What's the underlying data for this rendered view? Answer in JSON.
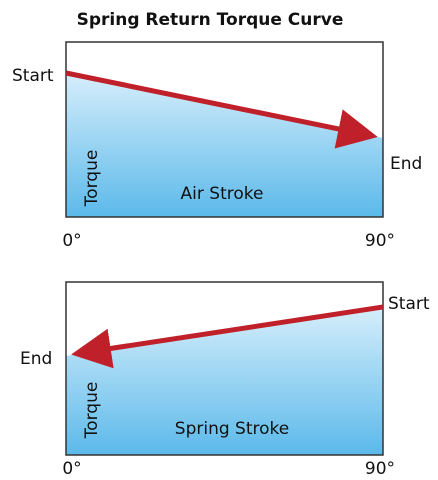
{
  "title": "Spring Return Torque Curve",
  "panels": [
    {
      "start": "Start",
      "end": "End",
      "y_label": "Torque",
      "stroke": "Air Stroke",
      "x_start": "0°",
      "x_end": "90°"
    },
    {
      "start": "Start",
      "end": "End",
      "y_label": "Torque",
      "stroke": "Spring Stroke",
      "x_start": "0°",
      "x_end": "90°"
    }
  ]
}
